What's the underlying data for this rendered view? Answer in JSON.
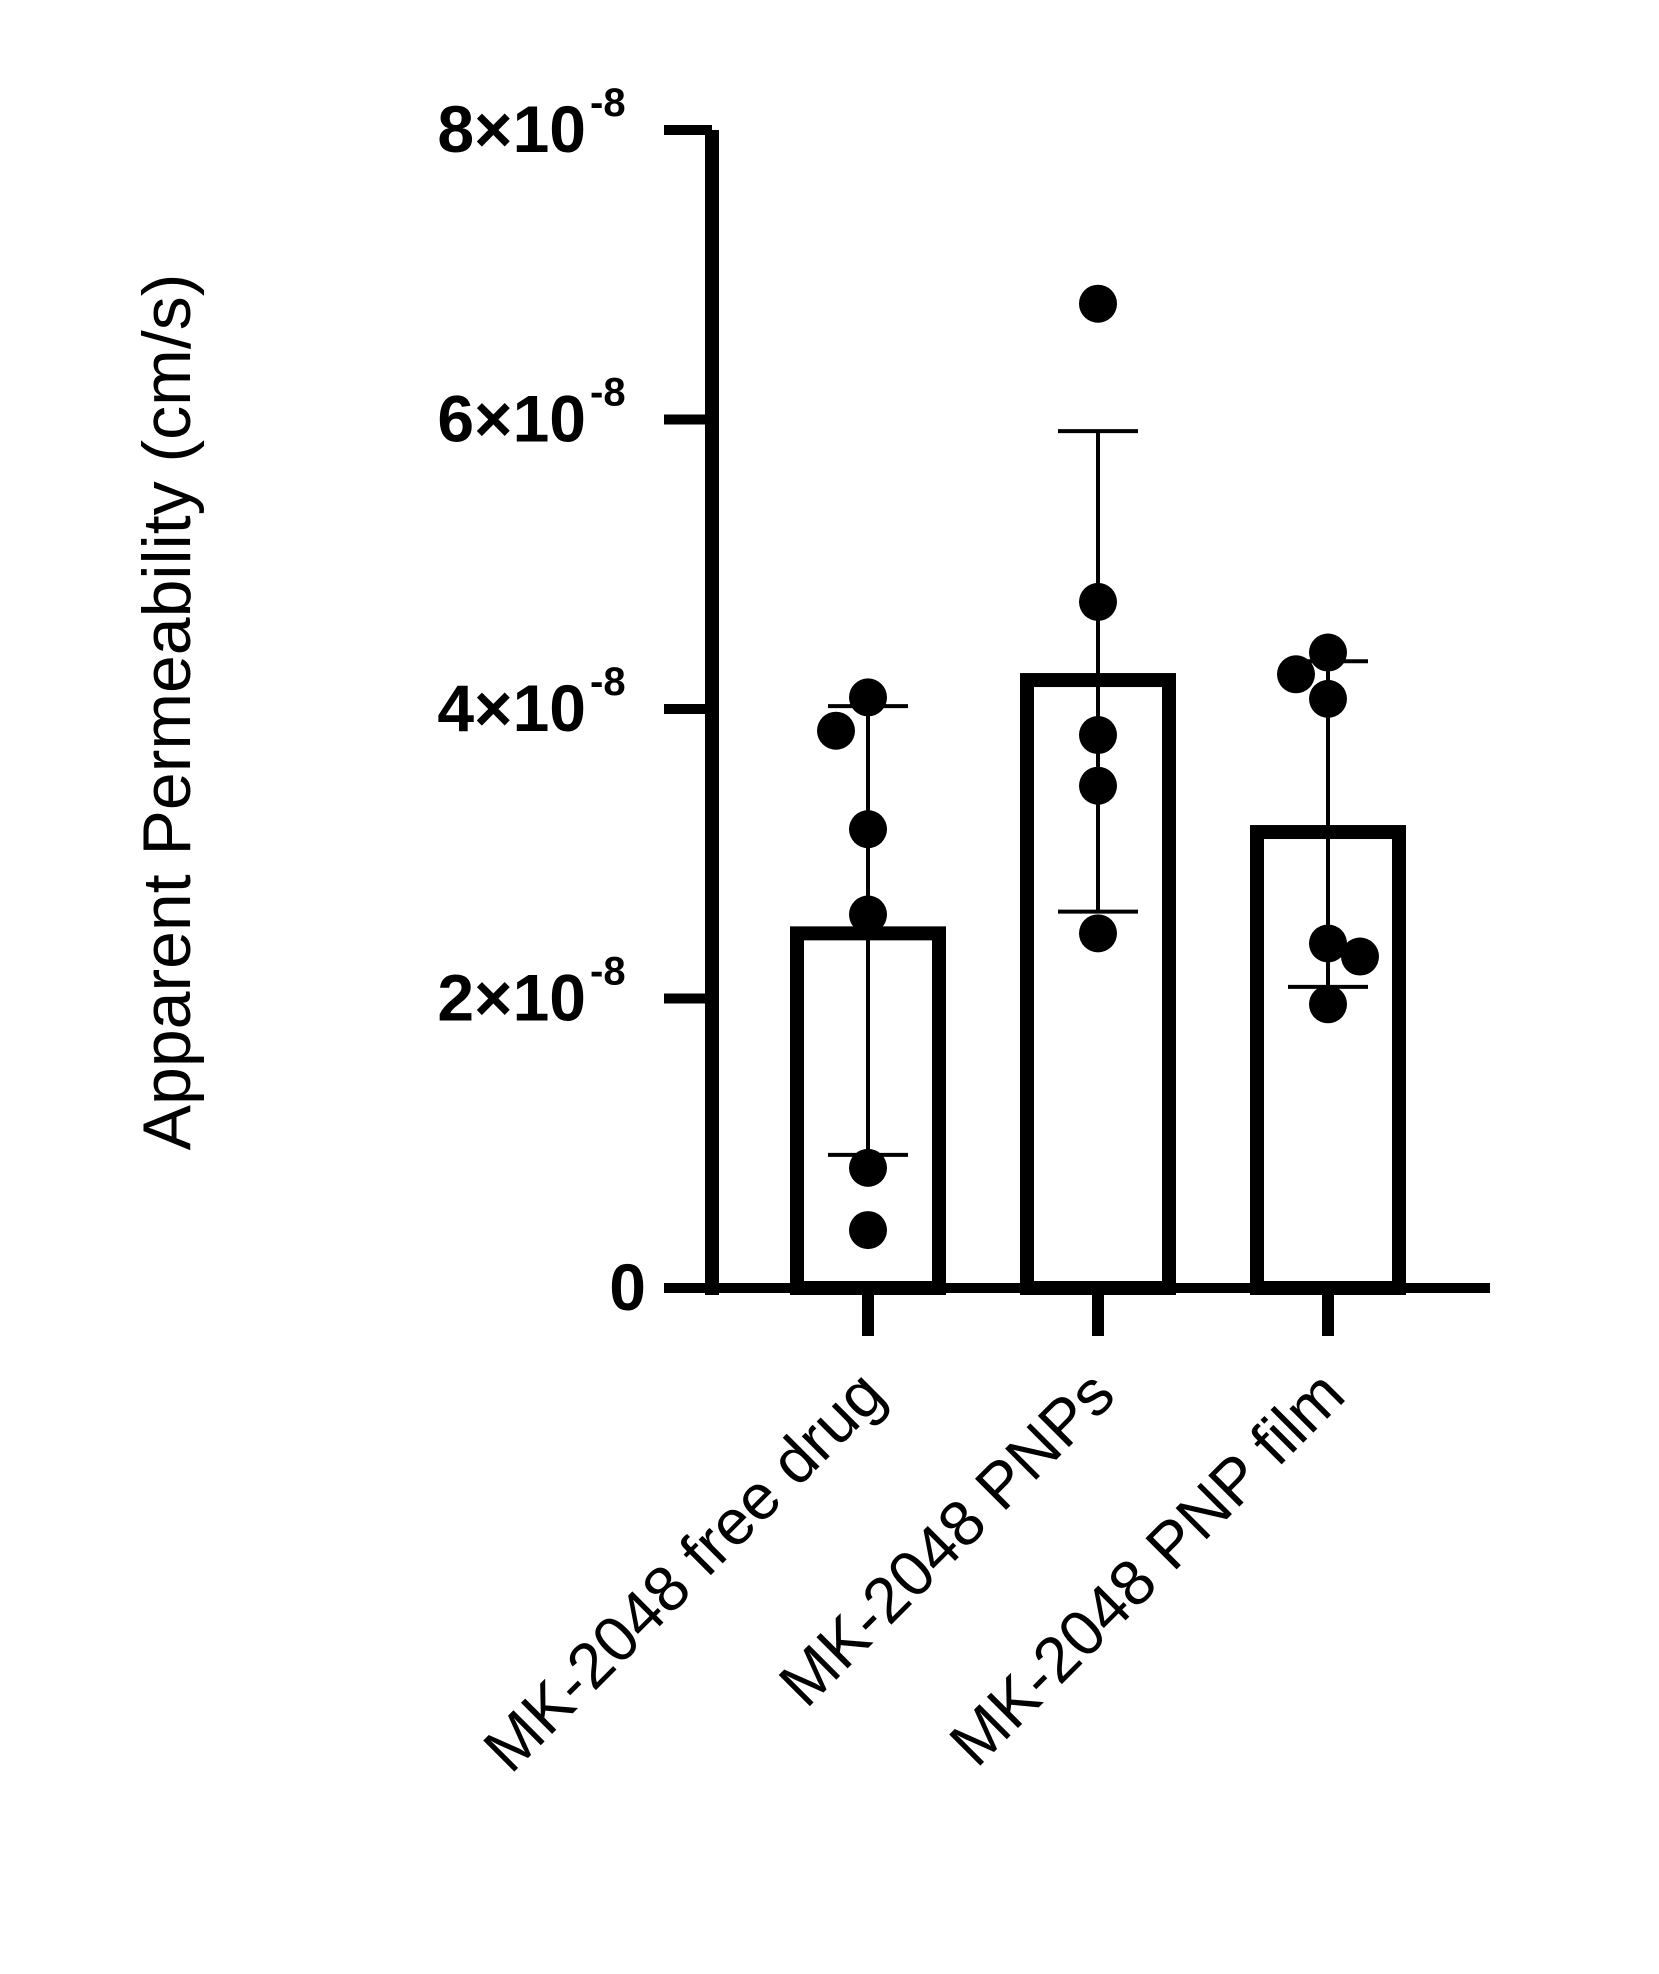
{
  "chart_data": {
    "type": "bar",
    "title": "",
    "xlabel": "",
    "ylabel": "Apparent Permeability (cm/s)",
    "ylim": [
      0,
      8e-08
    ],
    "yticks": [
      {
        "value": 0,
        "mantissa": "0",
        "exponent": ""
      },
      {
        "value": 2e-08,
        "mantissa": "2×10",
        "exponent": "-8"
      },
      {
        "value": 4e-08,
        "mantissa": "4×10",
        "exponent": "-8"
      },
      {
        "value": 6e-08,
        "mantissa": "6×10",
        "exponent": "-8"
      },
      {
        "value": 8e-08,
        "mantissa": "8×10",
        "exponent": "-8"
      }
    ],
    "grid": false,
    "legend": "none",
    "categories": [
      "MK-2048 free drug",
      "MK-2048 PNPs",
      "MK-2048 PNP film"
    ],
    "values": [
      2.45e-08,
      4.2e-08,
      3.15e-08
    ],
    "error": [
      {
        "low": 9.2e-09,
        "high": 4.02e-08
      },
      {
        "low": 2.6e-08,
        "high": 5.92e-08
      },
      {
        "low": 2.08e-08,
        "high": 4.33e-08
      }
    ],
    "points": [
      [
        4.08e-08,
        3.85e-08,
        3.17e-08,
        2.58e-08,
        8.3e-09,
        4e-09
      ],
      [
        6.8e-08,
        4.74e-08,
        3.82e-08,
        3.47e-08,
        2.45e-08
      ],
      [
        4.39e-08,
        4.24e-08,
        4.07e-08,
        2.38e-08,
        2.29e-08,
        1.96e-08
      ]
    ],
    "colors": {
      "bar_fill": "#ffffff",
      "stroke": "#000000",
      "points": "#000000"
    }
  }
}
